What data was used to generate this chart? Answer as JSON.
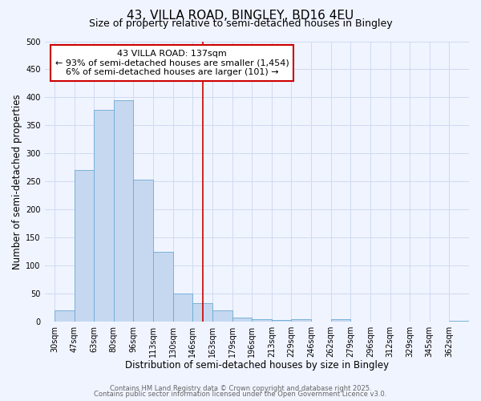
{
  "title": "43, VILLA ROAD, BINGLEY, BD16 4EU",
  "subtitle": "Size of property relative to semi-detached houses in Bingley",
  "xlabel": "Distribution of semi-detached houses by size in Bingley",
  "ylabel": "Number of semi-detached properties",
  "bin_labels": [
    "30sqm",
    "47sqm",
    "63sqm",
    "80sqm",
    "96sqm",
    "113sqm",
    "130sqm",
    "146sqm",
    "163sqm",
    "179sqm",
    "196sqm",
    "213sqm",
    "229sqm",
    "246sqm",
    "262sqm",
    "279sqm",
    "296sqm",
    "312sqm",
    "329sqm",
    "345sqm",
    "362sqm"
  ],
  "bar_values": [
    20,
    270,
    378,
    395,
    253,
    125,
    50,
    33,
    20,
    8,
    5,
    3,
    5,
    0,
    5,
    0,
    0,
    0,
    0,
    0,
    2
  ],
  "bar_color": "#c5d8f0",
  "bar_edge_color": "#6aaad4",
  "vline_position": 7.5,
  "ylim": [
    0,
    500
  ],
  "yticks": [
    0,
    50,
    100,
    150,
    200,
    250,
    300,
    350,
    400,
    450,
    500
  ],
  "annotation_title": "43 VILLA ROAD: 137sqm",
  "annotation_line1": "← 93% of semi-detached houses are smaller (1,454)",
  "annotation_line2": "6% of semi-detached houses are larger (101) →",
  "footer1": "Contains HM Land Registry data © Crown copyright and database right 2025.",
  "footer2": "Contains public sector information licensed under the Open Government Licence v3.0.",
  "background_color": "#f0f4ff",
  "grid_color": "#d0daf0",
  "vline_color": "#cc0000",
  "annotation_box_edge": "#cc0000",
  "title_fontsize": 11,
  "subtitle_fontsize": 9,
  "axis_label_fontsize": 8.5,
  "tick_fontsize": 7,
  "annotation_fontsize": 8,
  "footer_fontsize": 6
}
